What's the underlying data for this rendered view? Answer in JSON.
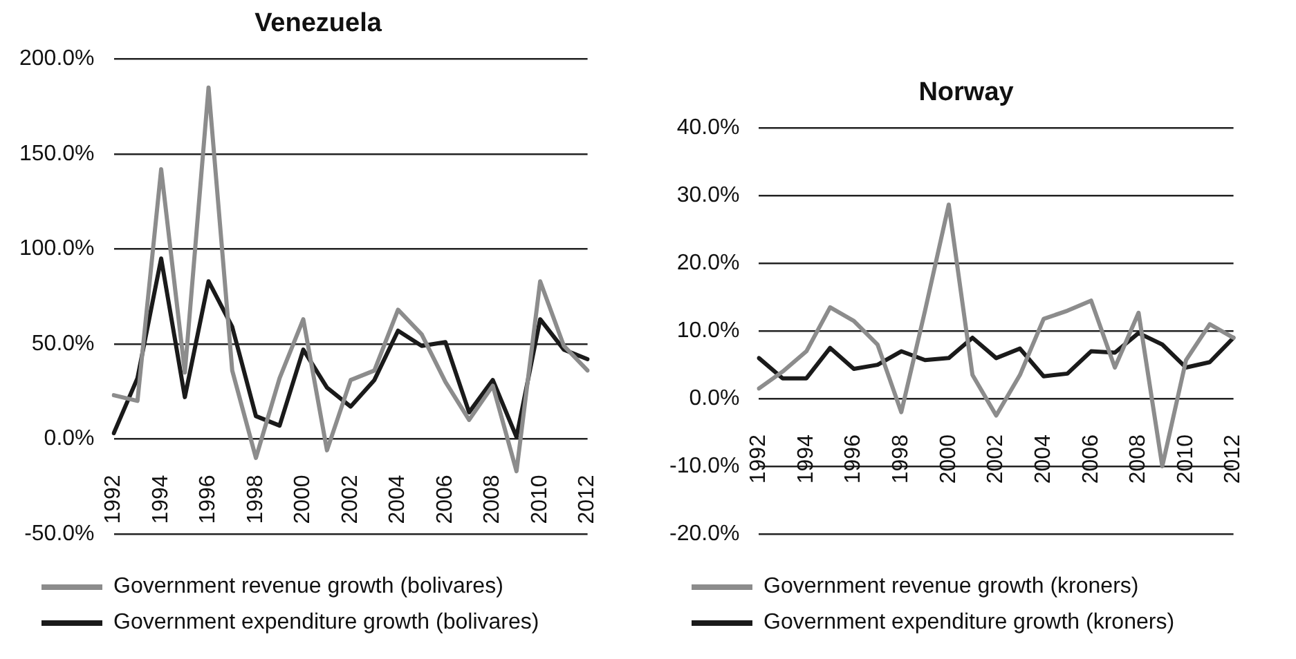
{
  "chart_data": [
    {
      "type": "line",
      "title": "Venezuela",
      "categories": [
        "1992",
        null,
        "1994",
        null,
        "1996",
        null,
        "1998",
        null,
        "2000",
        null,
        "2002",
        null,
        "2004",
        null,
        "2006",
        null,
        "2008",
        null,
        "2010",
        null,
        "2012"
      ],
      "series": [
        {
          "name": "Government revenue growth (bolivares)",
          "color": "#8c8c8c",
          "values": [
            23,
            20,
            142,
            35,
            185,
            36,
            -10,
            32,
            63,
            -6,
            31,
            36,
            68,
            55,
            30,
            10,
            28,
            -17,
            83,
            49,
            36
          ]
        },
        {
          "name": "Government expenditure growth (bolivares)",
          "color": "#1a1a1a",
          "values": [
            3,
            32,
            95,
            22,
            83,
            59,
            12,
            7,
            47,
            27,
            17,
            31,
            57,
            49,
            51,
            14,
            31,
            1,
            63,
            47,
            42
          ]
        }
      ],
      "ylim": [
        -50,
        200
      ],
      "yticks": [
        {
          "value": -50,
          "label": "-50.0%"
        },
        {
          "value": 0,
          "label": "0.0%"
        },
        {
          "value": 50,
          "label": "50.0%"
        },
        {
          "value": 100,
          "label": "100.0%"
        },
        {
          "value": 150,
          "label": "150.0%"
        },
        {
          "value": 200,
          "label": "200.0%"
        }
      ],
      "grid": "y",
      "legend": "bottom",
      "marker": "none",
      "line_style": "solid"
    },
    {
      "type": "line",
      "title": "Norway",
      "categories": [
        "1992",
        null,
        "1994",
        null,
        "1996",
        null,
        "1998",
        null,
        "2000",
        null,
        "2002",
        null,
        "2004",
        null,
        "2006",
        null,
        "2008",
        null,
        "2010",
        null,
        "2012"
      ],
      "series": [
        {
          "name": "Government revenue growth (kroners)",
          "color": "#8c8c8c",
          "values": [
            1.5,
            4,
            7,
            13.5,
            11.5,
            8,
            -2,
            13,
            28.7,
            3.5,
            -2.5,
            3.5,
            11.8,
            13,
            14.5,
            4.6,
            12.7,
            -10,
            5.7,
            11,
            9
          ]
        },
        {
          "name": "Government expenditure growth (kroners)",
          "color": "#1a1a1a",
          "values": [
            6,
            3,
            3,
            7.5,
            4.4,
            5,
            7,
            5.7,
            6,
            9,
            6,
            7.4,
            3.3,
            3.7,
            7,
            6.8,
            9.7,
            8,
            4.6,
            5.4,
            9
          ]
        }
      ],
      "ylim": [
        -20,
        40
      ],
      "yticks": [
        {
          "value": -20,
          "label": "-20.0%"
        },
        {
          "value": -10,
          "label": "-10.0%"
        },
        {
          "value": 0,
          "label": "0.0%"
        },
        {
          "value": 10,
          "label": "10.0%"
        },
        {
          "value": 20,
          "label": "20.0%"
        },
        {
          "value": 30,
          "label": "30.0%"
        },
        {
          "value": 40,
          "label": "40.0%"
        }
      ],
      "grid": "y",
      "legend": "bottom",
      "marker": "none",
      "line_style": "solid"
    }
  ]
}
